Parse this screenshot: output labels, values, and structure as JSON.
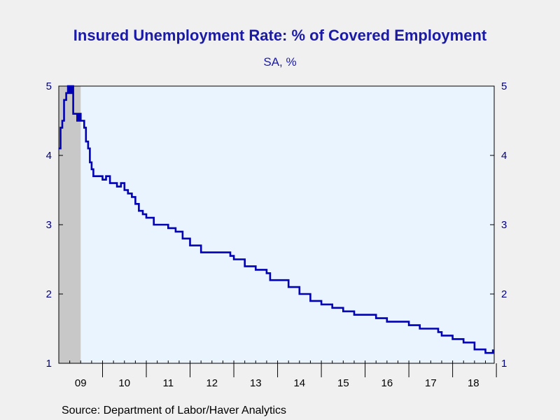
{
  "title": "Insured Unemployment Rate: % of Covered Employment",
  "subtitle": "SA, %",
  "source": "Source:  Department of Labor/Haver Analytics",
  "colors": {
    "line": "#0000b4",
    "plot_background": "#eaf4ff",
    "recession_shade": "#c8c8c8",
    "page_background": "#f0f0f0",
    "text": "#1a1aa6"
  },
  "chart_data": {
    "type": "line",
    "title": "Insured Unemployment Rate: % of Covered Employment",
    "subtitle": "SA, %",
    "xlabel": "",
    "ylabel": "",
    "ylim": [
      1,
      5
    ],
    "xlim": [
      2009.0,
      2018.95
    ],
    "y_ticks": [
      1,
      2,
      3,
      4,
      5
    ],
    "y_axes": [
      "left",
      "right"
    ],
    "x_tick_labels": [
      "09",
      "10",
      "11",
      "12",
      "13",
      "14",
      "15",
      "16",
      "17",
      "18"
    ],
    "recession_shading": [
      [
        2009.0,
        2009.5
      ]
    ],
    "grid": false,
    "legend": "none",
    "series": [
      {
        "x": [
          2009.0,
          2009.04,
          2009.08,
          2009.12,
          2009.17,
          2009.21,
          2009.25,
          2009.29,
          2009.33,
          2009.38,
          2009.42,
          2009.46,
          2009.5,
          2009.54,
          2009.58,
          2009.62,
          2009.67,
          2009.71,
          2009.75,
          2009.79,
          2009.83,
          2009.88,
          2009.92,
          2009.96,
          2010.0,
          2010.08,
          2010.17,
          2010.25,
          2010.33,
          2010.42,
          2010.5,
          2010.58,
          2010.67,
          2010.75,
          2010.83,
          2010.92,
          2011.0,
          2011.17,
          2011.33,
          2011.5,
          2011.67,
          2011.83,
          2012.0,
          2012.25,
          2012.5,
          2012.75,
          2012.92,
          2013.0,
          2013.25,
          2013.5,
          2013.75,
          2013.83,
          2014.0,
          2014.25,
          2014.5,
          2014.75,
          2015.0,
          2015.25,
          2015.5,
          2015.75,
          2016.0,
          2016.25,
          2016.5,
          2016.75,
          2017.0,
          2017.25,
          2017.5,
          2017.67,
          2017.75,
          2017.83,
          2018.0,
          2018.25,
          2018.5,
          2018.67,
          2018.75,
          2018.83,
          2018.92
        ],
        "values": [
          4.1,
          4.4,
          4.5,
          4.8,
          4.9,
          5.0,
          4.9,
          5.0,
          4.6,
          4.6,
          4.5,
          4.6,
          4.5,
          4.5,
          4.4,
          4.2,
          4.1,
          3.9,
          3.8,
          3.7,
          3.7,
          3.7,
          3.7,
          3.7,
          3.65,
          3.7,
          3.6,
          3.6,
          3.55,
          3.6,
          3.5,
          3.45,
          3.4,
          3.3,
          3.2,
          3.15,
          3.1,
          3.0,
          3.0,
          2.95,
          2.9,
          2.8,
          2.7,
          2.6,
          2.6,
          2.6,
          2.55,
          2.5,
          2.4,
          2.35,
          2.3,
          2.2,
          2.2,
          2.1,
          2.0,
          1.9,
          1.85,
          1.8,
          1.75,
          1.7,
          1.7,
          1.65,
          1.6,
          1.6,
          1.55,
          1.5,
          1.5,
          1.45,
          1.4,
          1.4,
          1.35,
          1.3,
          1.2,
          1.2,
          1.15,
          1.15,
          1.2
        ]
      }
    ]
  }
}
